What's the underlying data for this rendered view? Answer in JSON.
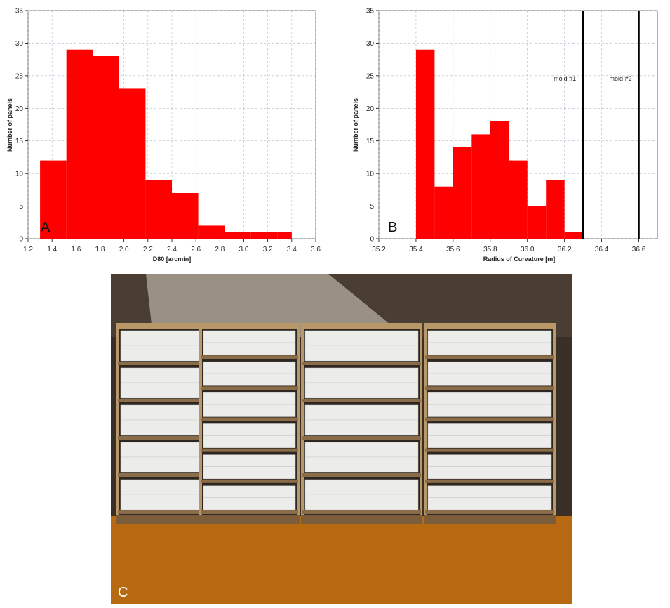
{
  "chart_data": [
    {
      "type": "bar",
      "panel_label": "A",
      "xlabel": "D80 [arcmin]",
      "ylabel": "Number of panels",
      "bin_edges": [
        1.3,
        1.52,
        1.74,
        1.96,
        2.18,
        2.4,
        2.62,
        2.84,
        3.06,
        3.28,
        3.4
      ],
      "values": [
        12,
        29,
        28,
        23,
        9,
        7,
        2,
        1,
        1,
        1
      ],
      "xlim": [
        1.2,
        3.6
      ],
      "ylim": [
        0,
        35
      ],
      "xticks": [
        "1.2",
        "1.4",
        "1.6",
        "1.8",
        "2.0",
        "2.2",
        "2.4",
        "2.6",
        "2.8",
        "3.0",
        "3.2",
        "3.4",
        "3.6"
      ],
      "yticks": [
        "0",
        "5",
        "10",
        "15",
        "20",
        "25",
        "30",
        "35"
      ],
      "bar_color": "#ff0000",
      "grid": true
    },
    {
      "type": "bar",
      "panel_label": "B",
      "xlabel": "Radius of Curvature [m]",
      "ylabel": "Number of panels",
      "bin_edges": [
        35.4,
        35.5,
        35.6,
        35.7,
        35.8,
        35.9,
        36.0,
        36.1,
        36.2,
        36.3
      ],
      "values": [
        29,
        8,
        14,
        16,
        18,
        12,
        5,
        9,
        1
      ],
      "xlim": [
        35.2,
        36.7
      ],
      "ylim": [
        0,
        35
      ],
      "xticks": [
        "35.2",
        "35.4",
        "35.6",
        "35.8",
        "36.0",
        "36.2",
        "36.4",
        "36.6"
      ],
      "yticks": [
        "0",
        "5",
        "10",
        "15",
        "20",
        "25",
        "30",
        "35"
      ],
      "bar_color": "#ff0000",
      "grid": true,
      "vertical_lines": [
        {
          "x": 36.3,
          "label": "mold #1"
        },
        {
          "x": 36.6,
          "label": "mold #2"
        }
      ]
    }
  ],
  "photo": {
    "panel_label": "C",
    "colors": {
      "floor": "#b86a12",
      "shelf": "#b89868",
      "panel": "#ececea",
      "wall": "#5a4a3c"
    }
  }
}
